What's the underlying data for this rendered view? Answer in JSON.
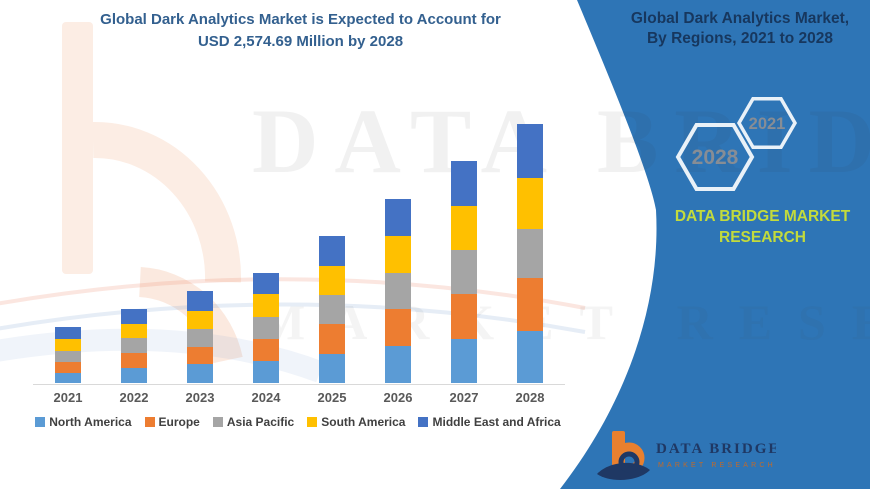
{
  "left_title": {
    "line1": "Global Dark Analytics Market is Expected to Account for",
    "line2": "USD 2,574.69 Million by 2028"
  },
  "right_panel": {
    "title_line1": "Global Dark Analytics Market,",
    "title_line2": "By Regions, 2021 to 2028",
    "hexagons": [
      {
        "label": "2028"
      },
      {
        "label": "2021"
      }
    ],
    "brand_line1": "DATA BRIDGE MARKET",
    "brand_line2": "RESEARCH",
    "colors": {
      "panel": "#2E75B6",
      "title_text": "#17375E",
      "brand_text": "#C3DB3C",
      "hex_stroke": "#E9F1F8",
      "hex_number": "#878D95"
    }
  },
  "logo": {
    "name": "DATA BRIDGE",
    "tagline": "MARKET RESEARCH",
    "colors": {
      "b_mark": "#E8802F",
      "swoosh": "#1F3864",
      "name_text": "#1F3864",
      "tagline_text": "#C06A2B"
    }
  },
  "watermark": {
    "line1": "DATA BRIDGE",
    "line2": "MARKET RESEARCH"
  },
  "chart_data": {
    "type": "bar",
    "subtype": "stacked-vertical",
    "title": "Global Dark Analytics Market is Expected to Account for USD 2,574.69 Million by 2028",
    "unit": "USD Million",
    "categories": [
      "2021",
      "2022",
      "2023",
      "2024",
      "2025",
      "2026",
      "2027",
      "2028"
    ],
    "series": [
      {
        "name": "North America",
        "color": "#5B9BD5",
        "values": [
          100,
          150,
          190,
          221,
          292,
          366,
          440,
          515
        ]
      },
      {
        "name": "Europe",
        "color": "#ED7D31",
        "values": [
          110,
          148,
          165,
          222,
          292,
          366,
          441,
          525
        ]
      },
      {
        "name": "Asia Pacific",
        "color": "#A5A5A5",
        "values": [
          110,
          145,
          180,
          212,
          290,
          366,
          440,
          490
        ]
      },
      {
        "name": "South America",
        "color": "#FFC000",
        "values": [
          115,
          140,
          185,
          230,
          293,
          366,
          441,
          510
        ]
      },
      {
        "name": "Middle East and Africa",
        "color": "#4472C4",
        "values": [
          120,
          151,
          195,
          215,
          292,
          366,
          440,
          534.69
        ]
      }
    ],
    "totals": [
      555,
      734,
      915,
      1100,
      1459,
      1830,
      2202,
      2574.69
    ],
    "ylim": [
      0,
      2600
    ],
    "grid": false,
    "legend_position": "bottom",
    "annotations": [
      "2,574.69 Million by 2028"
    ]
  }
}
